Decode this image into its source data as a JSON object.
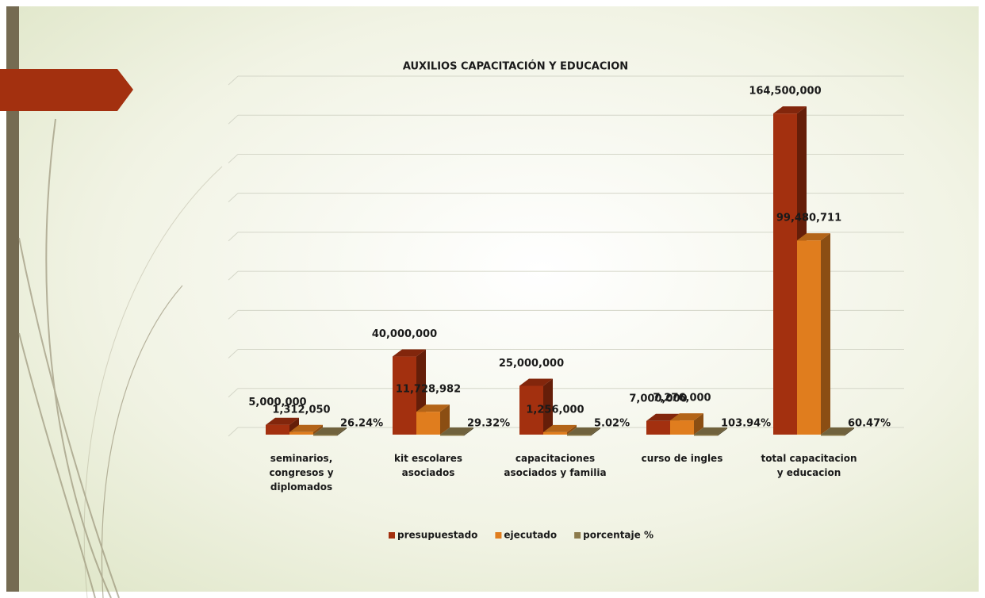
{
  "chart_data": {
    "type": "bar",
    "title": "AUXILIOS CAPACITACIÓN Y EDUCACION",
    "categories": [
      "seminarios, congresos y diplomados",
      "kit escolares asociados",
      "capacitaciones asociados y familia",
      "curso de ingles",
      "total capacitacion y educacion"
    ],
    "series": [
      {
        "name": "presupuestado",
        "color": "#a3300f",
        "values": [
          5000000,
          40000000,
          25000000,
          7000000,
          164500000
        ],
        "value_labels": [
          "5,000,000",
          "40,000,000",
          "25,000,000",
          "7,000,000",
          "164,500,000"
        ]
      },
      {
        "name": "ejecutado",
        "color": "#e07d1e",
        "values": [
          1312050,
          11728982,
          1256000,
          7276000,
          99480711
        ],
        "value_labels": [
          "1,312,050",
          "11,728,982",
          "1,256,000",
          "7,276,000",
          "99,480,711"
        ]
      },
      {
        "name": "porcentaje %",
        "color": "#8c7b4c",
        "values": [
          26.24,
          29.32,
          5.02,
          103.94,
          60.47
        ],
        "value_labels": [
          "26.24%",
          "29.32%",
          "5.02%",
          "103.94%",
          "60.47%"
        ]
      }
    ],
    "ylim": [
      0,
      180000000
    ],
    "yticks": [
      0,
      20000000,
      40000000,
      60000000,
      80000000,
      100000000,
      120000000,
      140000000,
      160000000,
      180000000
    ],
    "grid": true,
    "legend": "bottom"
  }
}
